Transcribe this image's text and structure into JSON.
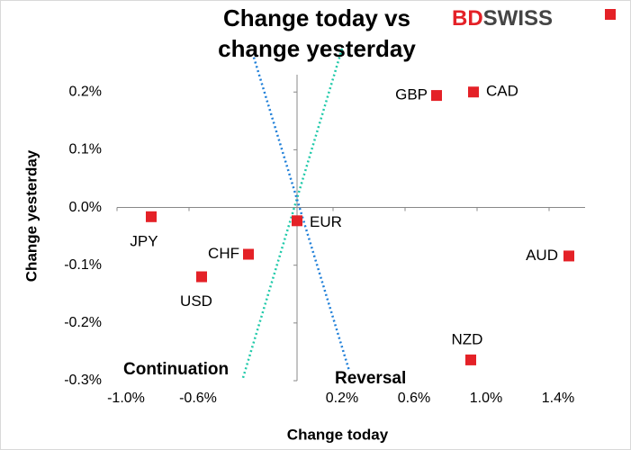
{
  "chart_data": {
    "type": "scatter",
    "title": [
      "Change today vs",
      "change yesterday"
    ],
    "logo": [
      "BD",
      "SWISS"
    ],
    "x_label": "Change today",
    "y_label": "Change yesterday",
    "xlim": [
      -1.0,
      1.6
    ],
    "ylim": [
      -0.3,
      0.23
    ],
    "xticks": [
      {
        "value": -1.0,
        "label": "-1.0%"
      },
      {
        "value": -0.6,
        "label": "-0.6%"
      },
      {
        "value": 0.2,
        "label": "0.2%"
      },
      {
        "value": 0.6,
        "label": "0.6%"
      },
      {
        "value": 1.0,
        "label": "1.0%"
      },
      {
        "value": 1.4,
        "label": "1.4%"
      }
    ],
    "yticks": [
      {
        "value": 0.2,
        "label": "0.2%"
      },
      {
        "value": 0.1,
        "label": "0.1%"
      },
      {
        "value": 0.0,
        "label": "0.0%"
      },
      {
        "value": -0.1,
        "label": "-0.1%"
      },
      {
        "value": -0.2,
        "label": "-0.2%"
      },
      {
        "value": -0.3,
        "label": "-0.3%"
      }
    ],
    "series": [
      {
        "color": "#e42127",
        "labels": [
          "JPY",
          "CHF",
          "USD",
          "EUR",
          "GBP",
          "CAD",
          "AUD",
          "NZD"
        ],
        "x": [
          -0.81,
          -0.27,
          -0.53,
          0.0,
          0.775,
          0.98,
          1.51,
          0.965
        ],
        "y": [
          -0.016,
          -0.081,
          -0.12,
          -0.023,
          0.194,
          0.2,
          -0.084,
          -0.264
        ]
      }
    ],
    "lines": [
      {
        "name": "Continuation",
        "color": "#1fc9a9",
        "x": [
          -0.3,
          0.25
        ],
        "y": [
          -0.295,
          0.275
        ]
      },
      {
        "name": "Reversal",
        "color": "#1f7fd8",
        "x": [
          -0.24,
          0.29
        ],
        "y": [
          0.26,
          -0.283
        ]
      }
    ]
  }
}
